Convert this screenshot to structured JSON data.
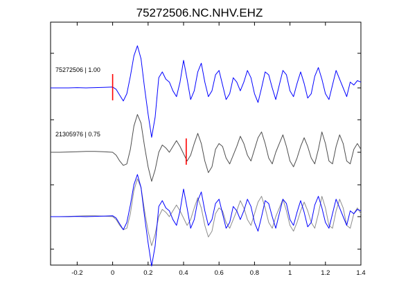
{
  "chart_data": {
    "type": "line",
    "title": "75272506.NC.NHV.EHZ",
    "xlabel": "",
    "ylabel": "",
    "xlim": [
      -0.35,
      1.4
    ],
    "xticks": [
      -0.2,
      0,
      0.2,
      0.4,
      0.6,
      0.8,
      1,
      1.2,
      1.4
    ],
    "xtick_labels": [
      "-0.2",
      "0",
      "0.2",
      "0.4",
      "0.6",
      "0.8",
      "1",
      "1.2",
      "1.4"
    ],
    "grid": false,
    "colors": {
      "template": "#0000ff",
      "match": "#4d4d4d",
      "overlay_match": "#8c8c8c",
      "pick": "#ff0000"
    },
    "panels": [
      {
        "label": "75272506 | 1.00",
        "pick_time": 0.0,
        "series": [
          {
            "role": "template",
            "color": "#0000ff",
            "ref": "template"
          }
        ]
      },
      {
        "label": "21305976 | 0.75",
        "pick_time": 0.415,
        "series": [
          {
            "role": "match",
            "color": "#4d4d4d",
            "ref": "match"
          }
        ]
      },
      {
        "label": "",
        "pick_time": null,
        "series": [
          {
            "role": "match",
            "color": "#8c8c8c",
            "ref": "match"
          },
          {
            "role": "template",
            "color": "#0000ff",
            "ref": "template"
          }
        ]
      }
    ],
    "waveforms": {
      "template": {
        "x": [
          -0.35,
          -0.3,
          -0.25,
          -0.2,
          -0.15,
          -0.1,
          -0.05,
          0.0,
          0.02,
          0.04,
          0.06,
          0.08,
          0.1,
          0.12,
          0.14,
          0.16,
          0.18,
          0.2,
          0.22,
          0.24,
          0.26,
          0.28,
          0.3,
          0.32,
          0.34,
          0.36,
          0.38,
          0.4,
          0.42,
          0.44,
          0.46,
          0.48,
          0.5,
          0.52,
          0.54,
          0.56,
          0.58,
          0.6,
          0.62,
          0.64,
          0.66,
          0.68,
          0.7,
          0.72,
          0.74,
          0.76,
          0.78,
          0.8,
          0.82,
          0.84,
          0.86,
          0.88,
          0.9,
          0.92,
          0.94,
          0.96,
          0.98,
          1.0,
          1.02,
          1.04,
          1.06,
          1.08,
          1.1,
          1.12,
          1.14,
          1.16,
          1.18,
          1.2,
          1.22,
          1.24,
          1.26,
          1.28,
          1.3,
          1.32,
          1.34,
          1.36,
          1.38,
          1.4
        ],
        "y": [
          0,
          0,
          0,
          0.01,
          0,
          0.01,
          0.02,
          0.03,
          -0.05,
          -0.25,
          -0.45,
          -0.2,
          0.4,
          1.1,
          1.45,
          1.0,
          0.0,
          -0.9,
          -1.7,
          -1.0,
          0.35,
          0.55,
          0.3,
          0.2,
          -0.1,
          -0.3,
          0.2,
          0.95,
          0.3,
          -0.4,
          -0.1,
          0.55,
          0.85,
          0.2,
          -0.3,
          -0.1,
          0.45,
          0.6,
          0.1,
          -0.4,
          -0.2,
          0.35,
          0.2,
          -0.1,
          0.2,
          0.6,
          0.35,
          -0.2,
          -0.5,
          0.0,
          0.55,
          0.45,
          0.0,
          -0.4,
          0.1,
          0.6,
          0.45,
          -0.1,
          -0.3,
          0.15,
          0.55,
          0.15,
          -0.35,
          -0.2,
          0.4,
          0.7,
          0.3,
          -0.2,
          -0.4,
          0.1,
          0.6,
          0.3,
          0.0,
          -0.3,
          0.2,
          0.1,
          0.25,
          0.2
        ]
      },
      "match": {
        "x": [
          -0.35,
          -0.3,
          -0.25,
          -0.2,
          -0.15,
          -0.1,
          -0.05,
          0.0,
          0.02,
          0.04,
          0.06,
          0.08,
          0.1,
          0.12,
          0.14,
          0.16,
          0.18,
          0.2,
          0.22,
          0.24,
          0.26,
          0.28,
          0.3,
          0.32,
          0.34,
          0.36,
          0.38,
          0.4,
          0.42,
          0.44,
          0.46,
          0.48,
          0.5,
          0.52,
          0.54,
          0.56,
          0.58,
          0.6,
          0.62,
          0.64,
          0.66,
          0.68,
          0.7,
          0.72,
          0.74,
          0.76,
          0.78,
          0.8,
          0.82,
          0.84,
          0.86,
          0.88,
          0.9,
          0.92,
          0.94,
          0.96,
          0.98,
          1.0,
          1.02,
          1.04,
          1.06,
          1.08,
          1.1,
          1.12,
          1.14,
          1.16,
          1.18,
          1.2,
          1.22,
          1.24,
          1.26,
          1.28,
          1.3,
          1.32,
          1.34,
          1.36,
          1.38,
          1.4
        ],
        "y": [
          0,
          0,
          0.01,
          0.02,
          0.03,
          0.03,
          0.02,
          0,
          -0.1,
          -0.3,
          -0.45,
          -0.4,
          0.1,
          0.9,
          1.3,
          1.0,
          0.2,
          -0.5,
          -1.0,
          -0.6,
          0.0,
          0.25,
          0.15,
          0.0,
          0.2,
          0.4,
          0.2,
          -0.05,
          -0.3,
          -0.1,
          0.3,
          0.65,
          0.3,
          -0.3,
          -0.7,
          -0.5,
          0.1,
          0.3,
          0.2,
          -0.2,
          -0.4,
          -0.1,
          0.2,
          0.55,
          0.3,
          -0.1,
          -0.3,
          0.1,
          0.5,
          0.7,
          0.3,
          -0.2,
          -0.4,
          0.0,
          0.3,
          0.6,
          0.2,
          -0.3,
          -0.5,
          -0.2,
          0.2,
          0.5,
          0.2,
          -0.2,
          -0.4,
          0.1,
          0.7,
          0.3,
          -0.3,
          -0.4,
          0.2,
          0.6,
          0.3,
          -0.3,
          -0.4,
          0.1,
          0.3,
          0.1
        ]
      }
    }
  }
}
